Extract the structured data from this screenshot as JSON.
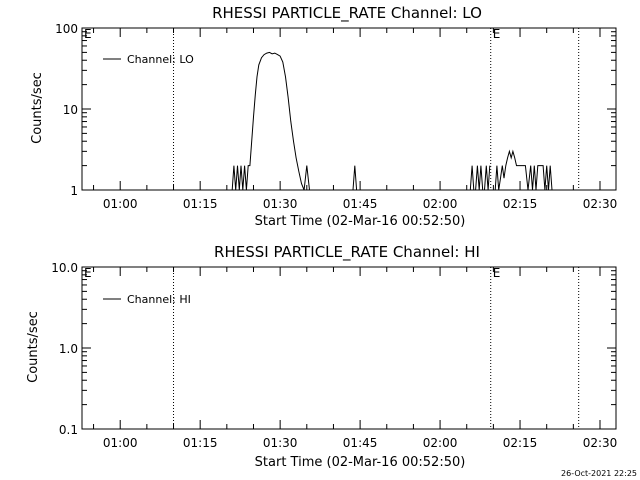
{
  "chart_data": [
    {
      "type": "line",
      "title": "RHESSI PARTICLE_RATE Channel: LO",
      "xlabel": "Start Time (02-Mar-16 00:52:50)",
      "ylabel": "Counts/sec",
      "y_scale": "log",
      "ylim": [
        1,
        100
      ],
      "y_ticks": [
        "1",
        "10",
        "100"
      ],
      "x_range": [
        "00:52:50",
        "02:33:00"
      ],
      "x_ticks": [
        "01:00",
        "01:15",
        "01:30",
        "01:45",
        "02:00",
        "02:15",
        "02:30"
      ],
      "legend": {
        "placement": "top-left",
        "entries": [
          "Channel: LO"
        ]
      },
      "markers": [
        {
          "label": "",
          "time": "01:10:00"
        },
        {
          "label": "E",
          "time": "02:09:30"
        },
        {
          "label": "",
          "time": "02:26:00"
        }
      ],
      "edge_markers": [
        {
          "label": "E",
          "time": "00:52:50"
        }
      ],
      "series": [
        {
          "name": "Channel: LO",
          "x": [
            "01:21:00",
            "01:21:20",
            "01:21:40",
            "01:22:00",
            "01:22:20",
            "01:22:40",
            "01:23:00",
            "01:23:20",
            "01:23:40",
            "01:24:00",
            "01:24:20",
            "01:24:40",
            "01:25:00",
            "01:25:20",
            "01:25:40",
            "01:26:00",
            "01:26:30",
            "01:27:00",
            "01:27:30",
            "01:28:00",
            "01:28:30",
            "01:29:00",
            "01:29:30",
            "01:30:00",
            "01:30:30",
            "01:31:00",
            "01:31:30",
            "01:32:00",
            "01:32:30",
            "01:33:00",
            "01:33:30",
            "01:34:00",
            "01:34:30",
            "01:35:00",
            "01:35:30",
            "01:36:00",
            "01:43:40",
            "01:44:00",
            "01:44:20",
            "02:05:40",
            "02:06:00",
            "02:06:20",
            "02:06:40",
            "02:07:00",
            "02:07:20",
            "02:07:40",
            "02:08:00",
            "02:08:20",
            "02:08:40",
            "02:09:00",
            "02:09:20",
            "02:10:00",
            "02:10:20",
            "02:10:40",
            "02:11:00",
            "02:11:20",
            "02:11:40",
            "02:12:00",
            "02:12:20",
            "02:12:40",
            "02:13:00",
            "02:13:20",
            "02:13:40",
            "02:14:00",
            "02:14:20",
            "02:14:40",
            "02:15:00",
            "02:15:30",
            "02:16:00",
            "02:16:30",
            "02:17:00",
            "02:17:20",
            "02:17:40",
            "02:18:00",
            "02:18:20",
            "02:18:40",
            "02:19:00",
            "02:19:20",
            "02:19:40",
            "02:20:00",
            "02:20:20",
            "02:20:40",
            "02:21:00"
          ],
          "y": [
            1,
            2,
            1,
            2,
            1,
            2,
            1,
            2,
            1,
            2,
            2,
            4,
            8,
            15,
            25,
            35,
            43,
            47,
            49,
            50,
            48,
            49,
            47,
            45,
            38,
            25,
            14,
            7,
            4,
            2.5,
            1.7,
            1.2,
            1,
            2,
            1,
            1,
            1,
            2,
            1,
            1,
            2,
            1,
            1,
            2,
            1,
            2,
            1,
            1,
            2,
            1,
            2,
            1,
            1,
            2,
            1,
            1.4,
            2,
            1.4,
            2,
            2.5,
            3,
            2.5,
            3,
            2.5,
            2,
            2,
            2,
            2,
            2,
            1,
            2,
            1,
            2,
            1,
            2,
            2,
            2,
            2,
            1,
            2,
            1,
            2,
            1
          ]
        }
      ]
    },
    {
      "type": "line",
      "title": "RHESSI PARTICLE_RATE Channel: HI",
      "xlabel": "Start Time (02-Mar-16 00:52:50)",
      "ylabel": "Counts/sec",
      "y_scale": "log",
      "ylim": [
        0.1,
        10
      ],
      "y_ticks": [
        "0.1",
        "1.0",
        "10.0"
      ],
      "x_range": [
        "00:52:50",
        "02:33:00"
      ],
      "x_ticks": [
        "01:00",
        "01:15",
        "01:30",
        "01:45",
        "02:00",
        "02:15",
        "02:30"
      ],
      "legend": {
        "placement": "top-left",
        "entries": [
          "Channel: HI"
        ]
      },
      "markers": [
        {
          "label": "",
          "time": "01:10:00"
        },
        {
          "label": "E",
          "time": "02:09:30"
        },
        {
          "label": "",
          "time": "02:26:00"
        }
      ],
      "edge_markers": [
        {
          "label": "E",
          "time": "00:52:50"
        }
      ],
      "series": [
        {
          "name": "Channel: HI",
          "x": [],
          "y": []
        }
      ]
    }
  ],
  "footer": {
    "stamp": "26-Oct-2021 22:25"
  }
}
